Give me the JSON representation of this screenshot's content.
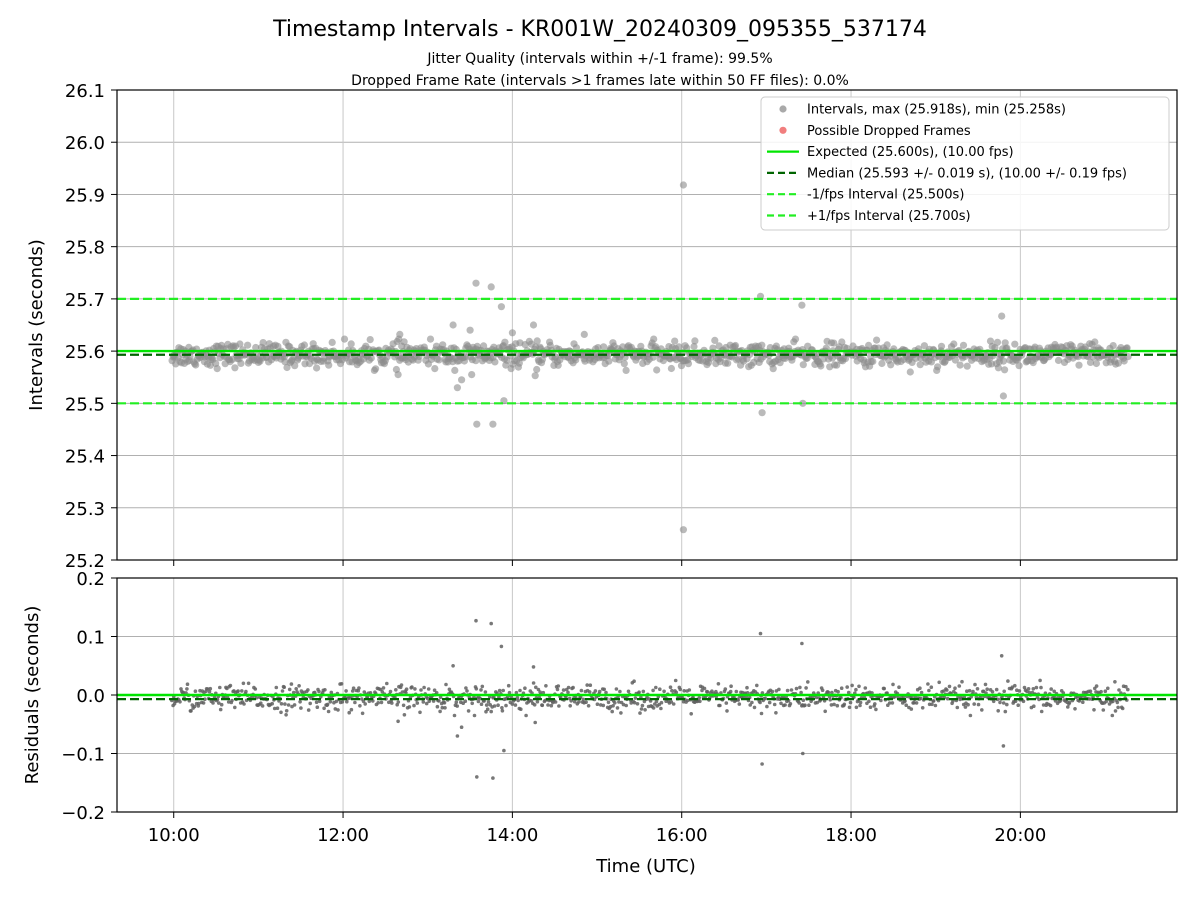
{
  "chart_data": [
    {
      "type": "scatter",
      "title": "Timestamp Intervals - KR001W_20240309_095355_537174",
      "subtitle_1": "Jitter Quality (intervals within +/-1 frame): 99.5%",
      "subtitle_2": "Dropped Frame Rate (intervals >1 frames late within 50 FF files): 0.0%",
      "ylabel": "Intervals (seconds)",
      "ylim": [
        25.2,
        26.1
      ],
      "yticks": [
        "25.2",
        "25.3",
        "25.4",
        "25.5",
        "25.6",
        "25.7",
        "25.8",
        "25.9",
        "26.0",
        "26.1"
      ],
      "xlim_hours": [
        9.33,
        21.85
      ],
      "grid": true,
      "legend_position": "top-right",
      "legend": [
        {
          "label": "Intervals, max (25.918s), min (25.258s)",
          "kind": "marker",
          "color": "#a0a0a0"
        },
        {
          "label": "Possible Dropped Frames",
          "kind": "marker",
          "color": "#f07070"
        },
        {
          "label": "Expected (25.600s), (10.00 fps)",
          "kind": "solid",
          "color": "#00e600"
        },
        {
          "label": "Median (25.593 +/- 0.019 s), (10.00 +/- 0.19 fps)",
          "kind": "dashed",
          "color": "#006400"
        },
        {
          "label": "-1/fps Interval (25.500s)",
          "kind": "dashed",
          "color": "#22ee22"
        },
        {
          "label": "+1/fps Interval (25.700s)",
          "kind": "dashed",
          "color": "#22ee22"
        }
      ],
      "reference_lines": {
        "expected": 25.6,
        "median": 25.593,
        "minus_one_fps": 25.5,
        "plus_one_fps": 25.7
      },
      "series_base": {
        "x_start": 9.98,
        "x_end": 21.27,
        "count": 1100,
        "center": 25.593,
        "spread": 0.011
      },
      "outliers": [
        {
          "x": 13.3,
          "y": 25.65
        },
        {
          "x": 13.35,
          "y": 25.53
        },
        {
          "x": 13.4,
          "y": 25.545
        },
        {
          "x": 13.5,
          "y": 25.64
        },
        {
          "x": 13.52,
          "y": 25.555
        },
        {
          "x": 13.57,
          "y": 25.73
        },
        {
          "x": 13.58,
          "y": 25.46
        },
        {
          "x": 13.75,
          "y": 25.723
        },
        {
          "x": 13.77,
          "y": 25.46
        },
        {
          "x": 13.87,
          "y": 25.685
        },
        {
          "x": 13.9,
          "y": 25.505
        },
        {
          "x": 14.0,
          "y": 25.635
        },
        {
          "x": 14.25,
          "y": 25.65
        },
        {
          "x": 14.27,
          "y": 25.553
        },
        {
          "x": 12.65,
          "y": 25.555
        },
        {
          "x": 12.67,
          "y": 25.632
        },
        {
          "x": 14.85,
          "y": 25.632
        },
        {
          "x": 16.02,
          "y": 25.918
        },
        {
          "x": 16.02,
          "y": 25.258
        },
        {
          "x": 16.93,
          "y": 25.705
        },
        {
          "x": 16.95,
          "y": 25.482
        },
        {
          "x": 17.42,
          "y": 25.688
        },
        {
          "x": 17.43,
          "y": 25.5
        },
        {
          "x": 19.78,
          "y": 25.667
        },
        {
          "x": 19.8,
          "y": 25.514
        },
        {
          "x": 18.7,
          "y": 25.56
        }
      ]
    },
    {
      "type": "scatter",
      "ylabel": "Residuals (seconds)",
      "xlabel": "Time (UTC)",
      "ylim": [
        -0.2,
        0.2
      ],
      "yticks": [
        "−0.2",
        "−0.1",
        "0.0",
        "0.1",
        "0.2"
      ],
      "xticks": [
        {
          "value": 10,
          "label": "10:00"
        },
        {
          "value": 12,
          "label": "12:00"
        },
        {
          "value": 14,
          "label": "14:00"
        },
        {
          "value": 16,
          "label": "16:00"
        },
        {
          "value": 18,
          "label": "18:00"
        },
        {
          "value": 20,
          "label": "20:00"
        }
      ],
      "reference_lines": {
        "zero": 0.0,
        "median_offset": -0.007
      },
      "series_base": {
        "x_start": 9.98,
        "x_end": 21.27,
        "count": 1100,
        "center": -0.005,
        "spread": 0.011
      },
      "outliers": [
        {
          "x": 13.3,
          "y": 0.05
        },
        {
          "x": 13.35,
          "y": -0.07
        },
        {
          "x": 13.4,
          "y": -0.055
        },
        {
          "x": 13.57,
          "y": 0.127
        },
        {
          "x": 13.58,
          "y": -0.14
        },
        {
          "x": 13.75,
          "y": 0.122
        },
        {
          "x": 13.77,
          "y": -0.142
        },
        {
          "x": 13.87,
          "y": 0.083
        },
        {
          "x": 13.9,
          "y": -0.095
        },
        {
          "x": 14.25,
          "y": 0.048
        },
        {
          "x": 16.93,
          "y": 0.105
        },
        {
          "x": 16.95,
          "y": -0.118
        },
        {
          "x": 17.42,
          "y": 0.088
        },
        {
          "x": 17.43,
          "y": -0.1
        },
        {
          "x": 19.78,
          "y": 0.067
        },
        {
          "x": 19.8,
          "y": -0.087
        },
        {
          "x": 12.65,
          "y": -0.045
        },
        {
          "x": 14.27,
          "y": -0.047
        }
      ]
    }
  ]
}
